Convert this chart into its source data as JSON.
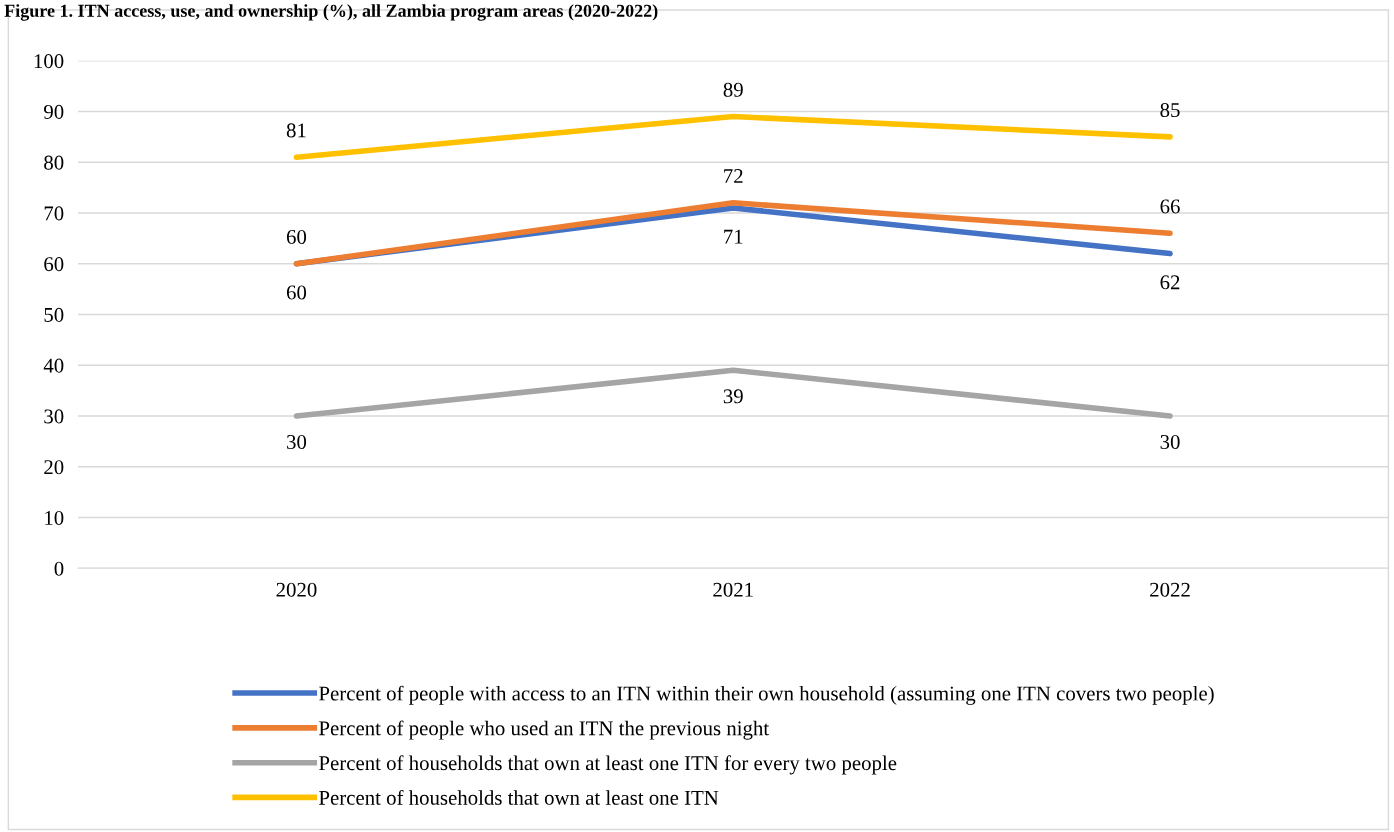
{
  "chart_data": {
    "type": "line",
    "title": "Figure 1. ITN access, use, and ownership (%), all Zambia program areas (2020-2022)",
    "categories": [
      "2020",
      "2021",
      "2022"
    ],
    "series": [
      {
        "name": "Percent of people with access to an ITN within their own household (assuming one ITN covers two people)",
        "color": "#4472c4",
        "values": [
          60,
          71,
          62
        ]
      },
      {
        "name": "Percent of people who used an ITN the previous night",
        "color": "#ed7d31",
        "values": [
          60,
          72,
          66
        ]
      },
      {
        "name": "Percent of households that own at least one ITN for every two people",
        "color": "#a5a5a5",
        "values": [
          30,
          39,
          30
        ]
      },
      {
        "name": "Percent of households that own at least one ITN",
        "color": "#ffc000",
        "values": [
          81,
          89,
          85
        ]
      }
    ],
    "ylim": [
      0,
      100
    ],
    "yticks": [
      0,
      10,
      20,
      30,
      40,
      50,
      60,
      70,
      80,
      90,
      100
    ],
    "grid": "y",
    "legend": "bottom",
    "data_labels": true,
    "marker": "none",
    "line_style": "solid"
  }
}
